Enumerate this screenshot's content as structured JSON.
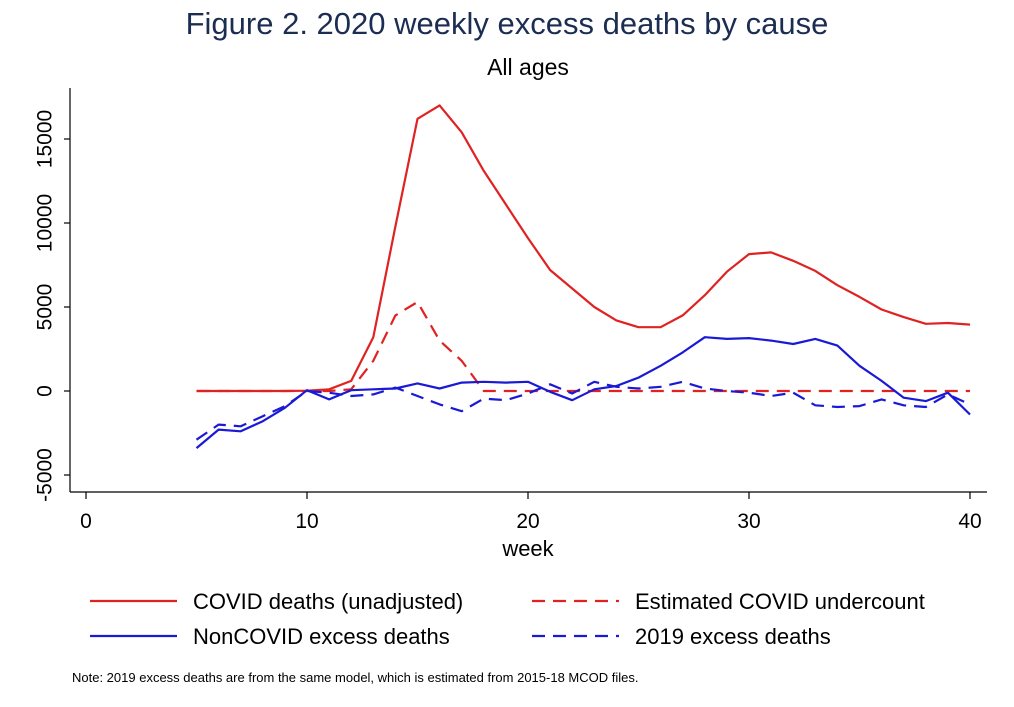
{
  "chart_data": {
    "type": "line",
    "title": "Figure 2.  2020 weekly excess deaths by cause",
    "subtitle": "All ages",
    "xlabel": "week",
    "ylabel": "",
    "xlim": [
      -0.5,
      40.5
    ],
    "ylim": [
      -6000,
      18000
    ],
    "xticks": [
      0,
      10,
      20,
      30,
      40
    ],
    "yticks": [
      -5000,
      0,
      5000,
      10000,
      15000
    ],
    "grid": false,
    "legend_position": "bottom",
    "series": [
      {
        "name": "COVID deaths (unadjusted)",
        "color": "#e02222",
        "dash": "solid",
        "x": [
          5,
          6,
          7,
          8,
          9,
          10,
          11,
          12,
          13,
          14,
          15,
          16,
          17,
          18,
          19,
          20,
          21,
          22,
          23,
          24,
          25,
          26,
          27,
          28,
          29,
          30,
          31,
          32,
          33,
          34,
          35,
          36,
          37,
          38,
          39,
          40
        ],
        "y": [
          0,
          0,
          0,
          0,
          0,
          20,
          100,
          600,
          3200,
          9800,
          16200,
          17000,
          15400,
          13100,
          11100,
          9100,
          7200,
          6100,
          5000,
          4200,
          3800,
          3800,
          4500,
          5700,
          7100,
          8150,
          8250,
          7750,
          7150,
          6300,
          5600,
          4850,
          4400,
          4000,
          4050,
          3950
        ]
      },
      {
        "name": "Estimated COVID undercount",
        "color": "#e02222",
        "dash": "dashed",
        "x": [
          5,
          6,
          7,
          8,
          9,
          10,
          11,
          12,
          13,
          14,
          15,
          16,
          17,
          18,
          19,
          20,
          21,
          22,
          23,
          24,
          25,
          26,
          27,
          28,
          29,
          30,
          31,
          32,
          33,
          34,
          35,
          36,
          37,
          38,
          39,
          40
        ],
        "y": [
          0,
          0,
          0,
          0,
          0,
          0,
          0,
          100,
          1800,
          4500,
          5300,
          3000,
          1800,
          0,
          0,
          0,
          0,
          0,
          0,
          0,
          0,
          0,
          0,
          0,
          0,
          0,
          0,
          0,
          0,
          0,
          0,
          0,
          0,
          0,
          0,
          0
        ]
      },
      {
        "name": "NonCOVID excess deaths",
        "color": "#1a1ad6",
        "dash": "solid",
        "x": [
          5,
          6,
          7,
          8,
          9,
          10,
          11,
          12,
          13,
          14,
          15,
          16,
          17,
          18,
          19,
          20,
          21,
          22,
          23,
          24,
          25,
          26,
          27,
          28,
          29,
          30,
          31,
          32,
          33,
          34,
          35,
          36,
          37,
          38,
          39,
          40
        ],
        "y": [
          -3400,
          -2300,
          -2400,
          -1800,
          -1000,
          50,
          -500,
          50,
          100,
          150,
          450,
          150,
          500,
          550,
          500,
          550,
          -50,
          -550,
          100,
          300,
          800,
          1500,
          2300,
          3200,
          3100,
          3150,
          3000,
          2800,
          3100,
          2700,
          1500,
          600,
          -400,
          -600,
          -100,
          -1400
        ]
      },
      {
        "name": "2019 excess deaths",
        "color": "#1a1ad6",
        "dash": "dashed",
        "x": [
          5,
          6,
          7,
          8,
          9,
          10,
          11,
          12,
          13,
          14,
          15,
          16,
          17,
          18,
          19,
          20,
          21,
          22,
          23,
          24,
          25,
          26,
          27,
          28,
          29,
          30,
          31,
          32,
          33,
          34,
          35,
          36,
          37,
          38,
          39,
          40
        ],
        "y": [
          -2900,
          -2000,
          -2100,
          -1500,
          -900,
          0,
          -100,
          -300,
          -200,
          200,
          -300,
          -800,
          -1200,
          -450,
          -550,
          -150,
          400,
          -150,
          550,
          250,
          150,
          250,
          550,
          150,
          0,
          -100,
          -300,
          -100,
          -850,
          -950,
          -900,
          -500,
          -850,
          -950,
          -200,
          -800
        ]
      }
    ]
  },
  "note": "Note: 2019 excess deaths are from the same model, which is estimated from 2015-18 MCOD files."
}
